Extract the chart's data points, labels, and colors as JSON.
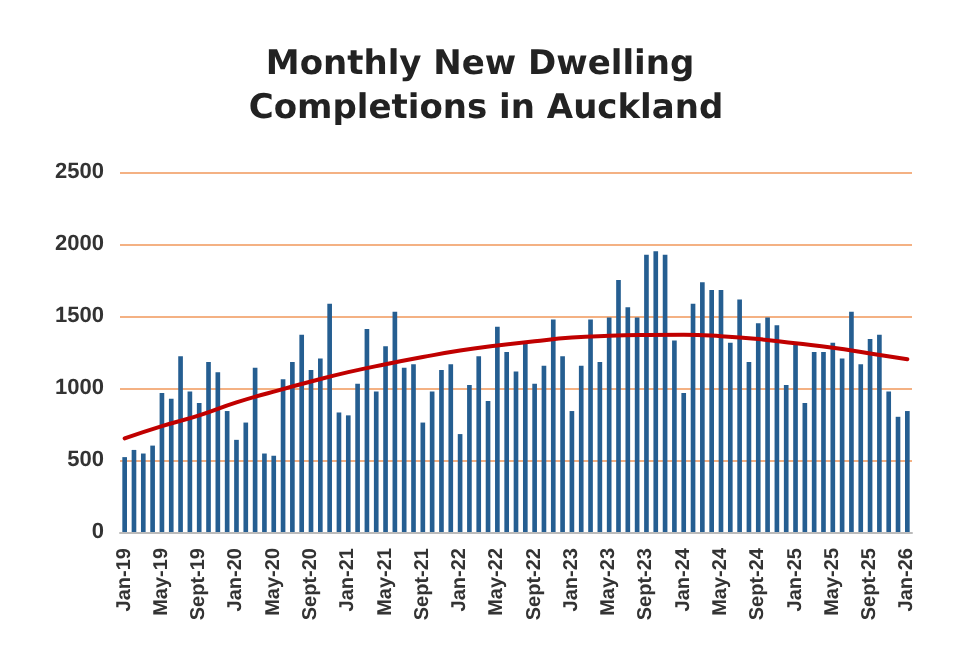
{
  "chart_data": {
    "type": "bar",
    "title": "Monthly New Dwelling Completions in Auckland",
    "categories": [
      "Jan-19",
      null,
      null,
      null,
      "May-19",
      null,
      null,
      null,
      "Sept-19",
      null,
      null,
      null,
      "Jan-20",
      null,
      null,
      null,
      "May-20",
      null,
      null,
      null,
      "Sept-20",
      null,
      null,
      null,
      "Jan-21",
      null,
      null,
      null,
      "May-21",
      null,
      null,
      null,
      "Sept-21",
      null,
      null,
      null,
      "Jan-22",
      null,
      null,
      null,
      "May-22",
      null,
      null,
      null,
      "Sept-22",
      null,
      null,
      null,
      "Jan-23",
      null,
      null,
      null,
      "May-23",
      null,
      null,
      null,
      "Sept-23",
      null,
      null,
      null,
      "Jan-24",
      null,
      null,
      null,
      "May-24",
      null,
      null,
      null,
      "Sept-24",
      null,
      null,
      null,
      "Jan-25",
      null,
      null,
      null,
      "May-25",
      null,
      null,
      null,
      "Sept-25",
      null,
      null,
      null,
      "Jan-26"
    ],
    "series": [
      {
        "color": "#255e91",
        "values": [
          520,
          570,
          545,
          600,
          965,
          925,
          1220,
          975,
          895,
          1180,
          1110,
          840,
          640,
          760,
          1140,
          545,
          530,
          1060,
          1180,
          1370,
          1125,
          1205,
          1585,
          830,
          810,
          1030,
          1410,
          975,
          1290,
          1530,
          1140,
          1165,
          760,
          975,
          1125,
          1165,
          680,
          1020,
          1220,
          910,
          1425,
          1250,
          1115,
          1315,
          1030,
          1155,
          1475,
          1220,
          840,
          1155,
          1475,
          1180,
          1490,
          1750,
          1560,
          1490,
          1925,
          1950,
          1925,
          1330,
          965,
          1585,
          1735,
          1680,
          1680,
          1315,
          1615,
          1180,
          1450,
          1490,
          1435,
          1020,
          1300,
          895,
          1250,
          1250,
          1315,
          1205,
          1530,
          1165,
          1340,
          1370,
          975,
          800,
          840
        ]
      },
      {
        "type": "line",
        "color": "#c00000",
        "x": [
          "Jan-19",
          "May-19",
          "Sept-19",
          "Jan-20",
          "May-20",
          "Sept-20",
          "Jan-21",
          "May-21",
          "Sept-21",
          "Jan-22",
          "May-22",
          "Sept-22",
          "Jan-23",
          "May-23",
          "Sept-23",
          "Jan-24",
          "May-24",
          "Sept-24",
          "Jan-25",
          "May-25",
          "Sept-25",
          "Jan-26"
        ],
        "values": [
          650,
          735,
          810,
          900,
          975,
          1045,
          1110,
          1165,
          1215,
          1260,
          1295,
          1325,
          1350,
          1362,
          1368,
          1370,
          1360,
          1340,
          1310,
          1280,
          1240,
          1200
        ]
      }
    ],
    "ylim": [
      0,
      2500
    ],
    "yticks": [
      0,
      500,
      1000,
      1500,
      2000,
      2500
    ],
    "grid": "y",
    "marker": "none"
  }
}
